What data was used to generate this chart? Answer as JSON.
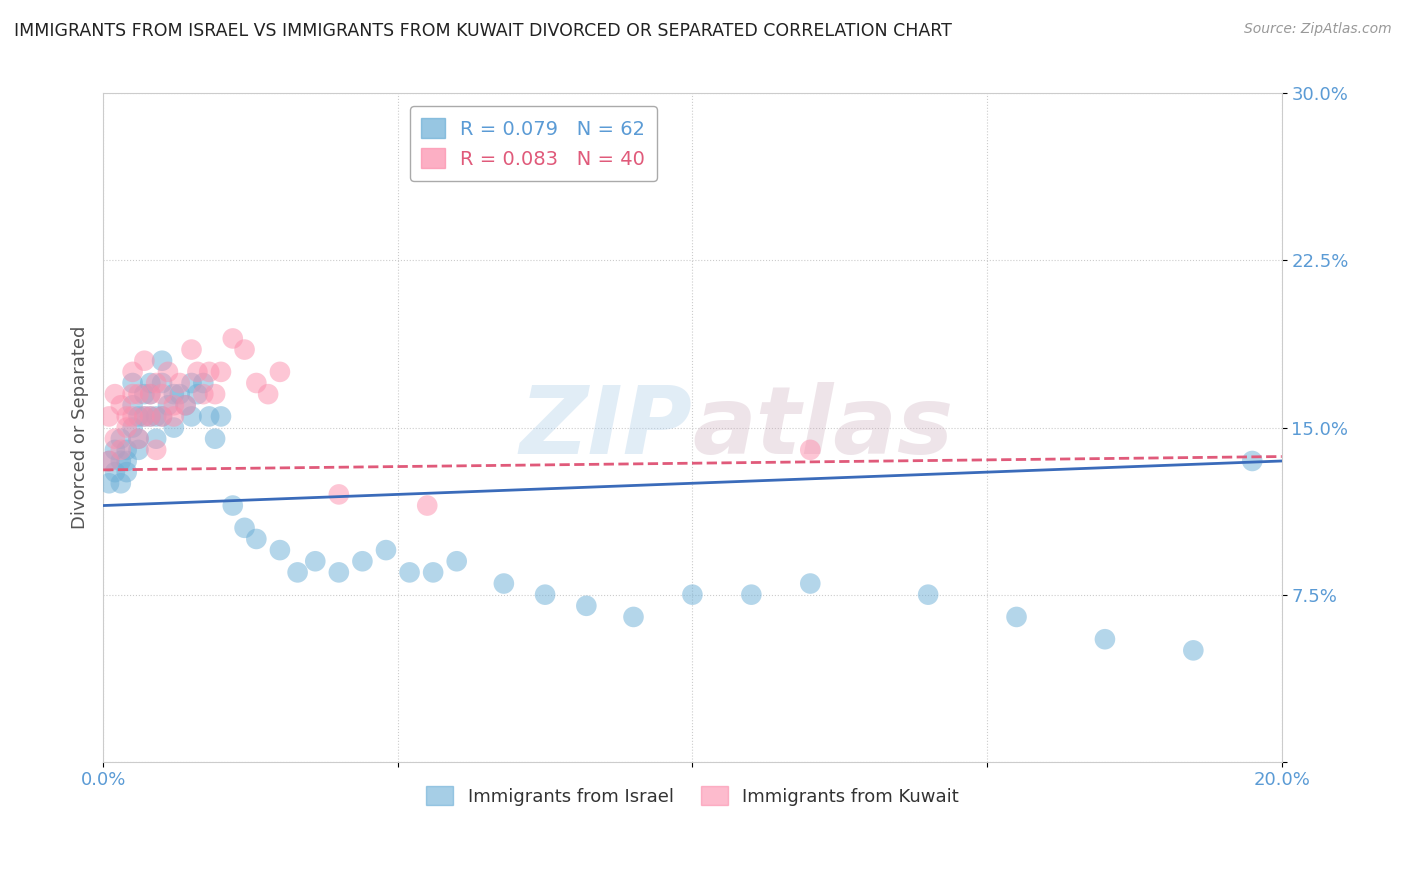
{
  "title": "IMMIGRANTS FROM ISRAEL VS IMMIGRANTS FROM KUWAIT DIVORCED OR SEPARATED CORRELATION CHART",
  "source": "Source: ZipAtlas.com",
  "ylabel": "Divorced or Separated",
  "xlim": [
    0.0,
    0.2
  ],
  "ylim": [
    0.0,
    0.3
  ],
  "xticks": [
    0.0,
    0.05,
    0.1,
    0.15,
    0.2
  ],
  "xtick_labels": [
    "0.0%",
    "",
    "",
    "",
    "20.0%"
  ],
  "yticks": [
    0.0,
    0.075,
    0.15,
    0.225,
    0.3
  ],
  "ytick_labels": [
    "",
    "7.5%",
    "15.0%",
    "22.5%",
    "30.0%"
  ],
  "israel_color": "#6baed6",
  "kuwait_color": "#fc8eac",
  "israel_R": 0.079,
  "israel_N": 62,
  "kuwait_R": 0.083,
  "kuwait_N": 40,
  "watermark": "ZIPatlas",
  "israel_x": [
    0.001,
    0.001,
    0.002,
    0.002,
    0.003,
    0.003,
    0.003,
    0.004,
    0.004,
    0.004,
    0.005,
    0.005,
    0.005,
    0.006,
    0.006,
    0.006,
    0.007,
    0.007,
    0.008,
    0.008,
    0.008,
    0.009,
    0.009,
    0.01,
    0.01,
    0.01,
    0.011,
    0.012,
    0.012,
    0.013,
    0.014,
    0.015,
    0.015,
    0.016,
    0.017,
    0.018,
    0.019,
    0.02,
    0.022,
    0.024,
    0.026,
    0.03,
    0.033,
    0.036,
    0.04,
    0.044,
    0.048,
    0.052,
    0.056,
    0.06,
    0.068,
    0.075,
    0.082,
    0.09,
    0.1,
    0.11,
    0.12,
    0.14,
    0.155,
    0.17,
    0.185,
    0.195
  ],
  "israel_y": [
    0.135,
    0.125,
    0.14,
    0.13,
    0.145,
    0.135,
    0.125,
    0.14,
    0.135,
    0.13,
    0.16,
    0.17,
    0.15,
    0.145,
    0.14,
    0.155,
    0.165,
    0.155,
    0.165,
    0.155,
    0.17,
    0.155,
    0.145,
    0.18,
    0.17,
    0.155,
    0.16,
    0.165,
    0.15,
    0.165,
    0.16,
    0.17,
    0.155,
    0.165,
    0.17,
    0.155,
    0.145,
    0.155,
    0.115,
    0.105,
    0.1,
    0.095,
    0.085,
    0.09,
    0.085,
    0.09,
    0.095,
    0.085,
    0.085,
    0.09,
    0.08,
    0.075,
    0.07,
    0.065,
    0.075,
    0.075,
    0.08,
    0.075,
    0.065,
    0.055,
    0.05,
    0.135
  ],
  "kuwait_x": [
    0.001,
    0.001,
    0.002,
    0.002,
    0.003,
    0.003,
    0.004,
    0.004,
    0.005,
    0.005,
    0.005,
    0.006,
    0.006,
    0.007,
    0.007,
    0.008,
    0.008,
    0.009,
    0.009,
    0.01,
    0.01,
    0.011,
    0.012,
    0.012,
    0.013,
    0.014,
    0.015,
    0.016,
    0.017,
    0.018,
    0.019,
    0.02,
    0.022,
    0.024,
    0.026,
    0.028,
    0.03,
    0.04,
    0.055,
    0.12
  ],
  "kuwait_y": [
    0.135,
    0.155,
    0.145,
    0.165,
    0.14,
    0.16,
    0.15,
    0.155,
    0.165,
    0.155,
    0.175,
    0.145,
    0.165,
    0.18,
    0.155,
    0.165,
    0.155,
    0.17,
    0.14,
    0.165,
    0.155,
    0.175,
    0.16,
    0.155,
    0.17,
    0.16,
    0.185,
    0.175,
    0.165,
    0.175,
    0.165,
    0.175,
    0.19,
    0.185,
    0.17,
    0.165,
    0.175,
    0.12,
    0.115,
    0.14
  ],
  "israel_line_x": [
    0.0,
    0.2
  ],
  "israel_line_y": [
    0.115,
    0.135
  ],
  "kuwait_line_x": [
    0.0,
    0.2
  ],
  "kuwait_line_y": [
    0.131,
    0.137
  ],
  "background_color": "#ffffff",
  "grid_color": "#cccccc",
  "title_color": "#333333"
}
